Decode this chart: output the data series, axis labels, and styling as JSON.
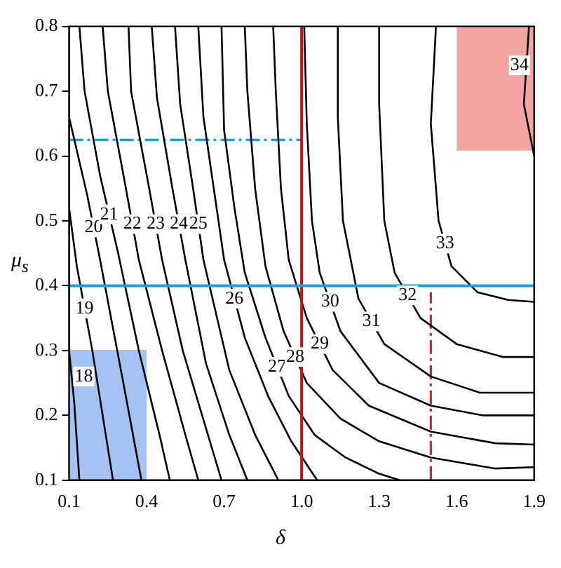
{
  "chart_data": {
    "type": "line",
    "xlabel": "δ",
    "ylabel": "μ$_{s}$",
    "xlim": [
      0.1,
      1.9
    ],
    "ylim": [
      0.1,
      0.8
    ],
    "xticks": [
      0.1,
      0.4,
      0.7,
      {
        "value": 1,
        "label": "1.0"
      },
      1.3,
      1.6,
      1.9
    ],
    "yticks": [
      0.1,
      0.2,
      0.3,
      0.4,
      0.5,
      0.6,
      0.7,
      0.8
    ],
    "marker": "none",
    "line_style": "solid",
    "series": [
      {
        "name": "18",
        "color": "#000000",
        "x": [
          0.1,
          0.12,
          0.14
        ],
        "values": [
          0.3,
          0.22,
          0.1
        ]
      },
      {
        "name": "19",
        "color": "#000000",
        "x": [
          0.1,
          0.13,
          0.19,
          0.23,
          0.27
        ],
        "values": [
          0.52,
          0.43,
          0.3,
          0.2,
          0.1
        ]
      },
      {
        "name": "20",
        "color": "#000000",
        "x": [
          0.1,
          0.17,
          0.22,
          0.31,
          0.38
        ],
        "values": [
          0.66,
          0.54,
          0.44,
          0.25,
          0.1
        ]
      },
      {
        "name": "21",
        "color": "#000000",
        "x": [
          0.14,
          0.16,
          0.22,
          0.29,
          0.37,
          0.45,
          0.49
        ],
        "values": [
          0.8,
          0.7,
          0.57,
          0.45,
          0.3,
          0.17,
          0.1
        ]
      },
      {
        "name": "22",
        "color": "#000000",
        "x": [
          0.23,
          0.25,
          0.32,
          0.37,
          0.46,
          0.55,
          0.6
        ],
        "values": [
          0.8,
          0.7,
          0.55,
          0.44,
          0.3,
          0.17,
          0.1
        ]
      },
      {
        "name": "23",
        "color": "#000000",
        "x": [
          0.33,
          0.34,
          0.41,
          0.46,
          0.54,
          0.63,
          0.69
        ],
        "values": [
          0.8,
          0.7,
          0.55,
          0.44,
          0.3,
          0.18,
          0.1
        ]
      },
      {
        "name": "24",
        "color": "#000000",
        "x": [
          0.42,
          0.44,
          0.5,
          0.55,
          0.63,
          0.72,
          0.79
        ],
        "values": [
          0.8,
          0.69,
          0.55,
          0.44,
          0.28,
          0.17,
          0.1
        ]
      },
      {
        "name": "25",
        "color": "#000000",
        "x": [
          0.51,
          0.53,
          0.58,
          0.62,
          0.72,
          0.82,
          0.91
        ],
        "values": [
          0.8,
          0.68,
          0.55,
          0.44,
          0.27,
          0.17,
          0.1
        ]
      },
      {
        "name": "26",
        "color": "#000000",
        "x": [
          0.6,
          0.62,
          0.66,
          0.7,
          0.78,
          0.87,
          0.96,
          1.06
        ],
        "values": [
          0.8,
          0.66,
          0.55,
          0.44,
          0.32,
          0.23,
          0.16,
          0.1
        ]
      },
      {
        "name": "27",
        "color": "#000000",
        "x": [
          0.69,
          0.7,
          0.74,
          0.78,
          0.86,
          0.95,
          1.05,
          1.17,
          1.3,
          1.38
        ],
        "values": [
          0.8,
          0.64,
          0.52,
          0.42,
          0.32,
          0.23,
          0.17,
          0.135,
          0.11,
          0.1
        ]
      },
      {
        "name": "28",
        "color": "#000000",
        "x": [
          0.78,
          0.79,
          0.82,
          0.86,
          0.93,
          1.02,
          1.15,
          1.3,
          1.5,
          1.75,
          1.9
        ],
        "values": [
          0.8,
          0.7,
          0.55,
          0.43,
          0.33,
          0.25,
          0.195,
          0.16,
          0.135,
          0.118,
          0.12
        ]
      },
      {
        "name": "29",
        "color": "#000000",
        "x": [
          0.89,
          0.9,
          0.92,
          0.95,
          1.02,
          1.12,
          1.26,
          1.5,
          1.75,
          1.9
        ],
        "values": [
          0.8,
          0.7,
          0.55,
          0.44,
          0.35,
          0.27,
          0.215,
          0.175,
          0.157,
          0.155
        ]
      },
      {
        "name": "30",
        "color": "#000000",
        "x": [
          1.01,
          1.02,
          1.04,
          1.07,
          1.15,
          1.3,
          1.5,
          1.7,
          1.9
        ],
        "values": [
          0.8,
          0.65,
          0.5,
          0.42,
          0.33,
          0.25,
          0.215,
          0.2,
          0.2
        ]
      },
      {
        "name": "31",
        "color": "#000000",
        "x": [
          1.14,
          1.14,
          1.16,
          1.22,
          1.32,
          1.5,
          1.69,
          1.9
        ],
        "values": [
          0.8,
          0.66,
          0.5,
          0.38,
          0.31,
          0.26,
          0.235,
          0.235
        ]
      },
      {
        "name": "32",
        "color": "#000000",
        "x": [
          1.3,
          1.3,
          1.32,
          1.36,
          1.46,
          1.6,
          1.78,
          1.9
        ],
        "values": [
          0.8,
          0.68,
          0.5,
          0.42,
          0.35,
          0.31,
          0.29,
          0.29
        ]
      },
      {
        "name": "33",
        "color": "#000000",
        "x": [
          1.52,
          1.5,
          1.53,
          1.58,
          1.68,
          1.8,
          1.9
        ],
        "values": [
          0.8,
          0.65,
          0.5,
          0.43,
          0.39,
          0.378,
          0.375
        ]
      },
      {
        "name": "34",
        "color": "#000000",
        "x": [
          1.88,
          1.86,
          1.9
        ],
        "values": [
          0.8,
          0.68,
          0.6
        ]
      },
      {
        "type": "area",
        "color": "#a4c2f2",
        "x": [
          0.1,
          0.4
        ],
        "values": [
          0.3,
          0.3
        ]
      },
      {
        "color": "#f5a3a3",
        "x": [
          1.6,
          1.9
        ],
        "values": [
          0.61,
          0.61
        ],
        "lower": [
          0.61,
          0.61
        ],
        "upper": [
          0.8,
          0.8
        ]
      },
      {
        "color": "#1aa0e0",
        "line_style": "dashed",
        "x": [
          0.1,
          1.0
        ],
        "values": [
          0.625,
          0.625
        ]
      },
      {
        "color": "#e02020",
        "line_style": "dashed",
        "x": [
          1.5,
          1.5
        ],
        "values": [
          0.1,
          0.39
        ]
      }
    ],
    "ref_lines": [
      {
        "axis": "x",
        "value": 1.0,
        "color": "#cc1010"
      },
      {
        "axis": "y",
        "value": 0.4,
        "color": "#1aa0e0"
      }
    ]
  }
}
